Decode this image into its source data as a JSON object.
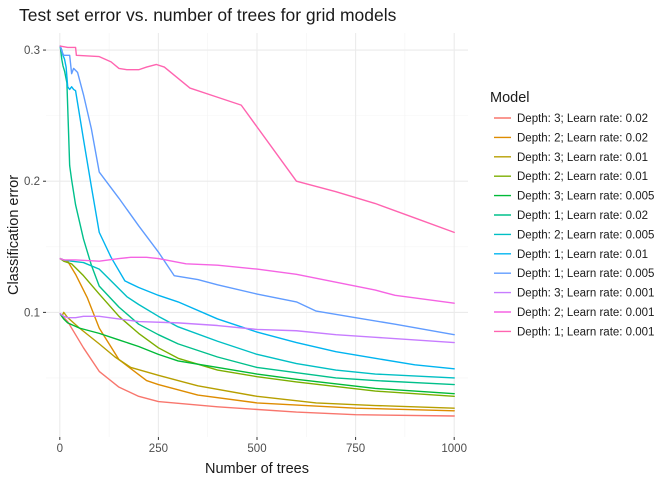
{
  "chart_data": {
    "type": "line",
    "title": "Test set error vs. number of trees for grid models",
    "xlabel": "Number of trees",
    "ylabel": "Classification error",
    "xlim": [
      -35,
      1035
    ],
    "ylim": [
      0.005,
      0.313
    ],
    "x_ticks": [
      0,
      250,
      500,
      750,
      1000
    ],
    "x_tick_labels": [
      "0",
      "250",
      "500",
      "750",
      "1000"
    ],
    "y_ticks": [
      0.1,
      0.2,
      0.3
    ],
    "y_tick_labels": [
      "0.1",
      "0.2",
      "0.3"
    ],
    "grid": true,
    "legend_title": "Model",
    "legend_position": "right",
    "series": [
      {
        "name": "Depth: 3; Learn rate: 0.02",
        "color": "#F8766D",
        "points": [
          [
            1,
            0.099
          ],
          [
            20,
            0.093
          ],
          [
            40,
            0.083
          ],
          [
            60,
            0.073
          ],
          [
            100,
            0.055
          ],
          [
            150,
            0.043
          ],
          [
            200,
            0.036
          ],
          [
            250,
            0.032
          ],
          [
            400,
            0.028
          ],
          [
            600,
            0.024
          ],
          [
            750,
            0.022
          ],
          [
            1000,
            0.021
          ]
        ]
      },
      {
        "name": "Depth: 2; Learn rate: 0.02",
        "color": "#DE8C00",
        "points": [
          [
            1,
            0.141
          ],
          [
            20,
            0.139
          ],
          [
            40,
            0.129
          ],
          [
            70,
            0.111
          ],
          [
            100,
            0.088
          ],
          [
            150,
            0.064
          ],
          [
            220,
            0.048
          ],
          [
            250,
            0.045
          ],
          [
            350,
            0.037
          ],
          [
            500,
            0.031
          ],
          [
            750,
            0.027
          ],
          [
            1000,
            0.025
          ]
        ]
      },
      {
        "name": "Depth: 3; Learn rate: 0.01",
        "color": "#B79F00",
        "points": [
          [
            1,
            0.099
          ],
          [
            5,
            0.097
          ],
          [
            10,
            0.1
          ],
          [
            20,
            0.096
          ],
          [
            50,
            0.088
          ],
          [
            100,
            0.076
          ],
          [
            140,
            0.066
          ],
          [
            180,
            0.058
          ],
          [
            250,
            0.052
          ],
          [
            350,
            0.044
          ],
          [
            500,
            0.036
          ],
          [
            650,
            0.031
          ],
          [
            800,
            0.029
          ],
          [
            1000,
            0.027
          ]
        ]
      },
      {
        "name": "Depth: 2; Learn rate: 0.01",
        "color": "#7CAE00",
        "points": [
          [
            1,
            0.141
          ],
          [
            10,
            0.139
          ],
          [
            30,
            0.137
          ],
          [
            60,
            0.128
          ],
          [
            100,
            0.114
          ],
          [
            150,
            0.097
          ],
          [
            200,
            0.084
          ],
          [
            250,
            0.073
          ],
          [
            300,
            0.065
          ],
          [
            400,
            0.056
          ],
          [
            500,
            0.051
          ],
          [
            600,
            0.047
          ],
          [
            800,
            0.04
          ],
          [
            1000,
            0.036
          ]
        ]
      },
      {
        "name": "Depth: 3; Learn rate: 0.005",
        "color": "#00BA38",
        "points": [
          [
            1,
            0.099
          ],
          [
            5,
            0.097
          ],
          [
            10,
            0.095
          ],
          [
            20,
            0.092
          ],
          [
            50,
            0.088
          ],
          [
            100,
            0.084
          ],
          [
            150,
            0.079
          ],
          [
            200,
            0.074
          ],
          [
            250,
            0.068
          ],
          [
            300,
            0.063
          ],
          [
            400,
            0.058
          ],
          [
            500,
            0.053
          ],
          [
            600,
            0.049
          ],
          [
            800,
            0.042
          ],
          [
            1000,
            0.038
          ]
        ]
      },
      {
        "name": "Depth: 1; Learn rate: 0.02",
        "color": "#00C08B",
        "points": [
          [
            1,
            0.303
          ],
          [
            3,
            0.298
          ],
          [
            5,
            0.293
          ],
          [
            8,
            0.288
          ],
          [
            12,
            0.284
          ],
          [
            18,
            0.275
          ],
          [
            25,
            0.212
          ],
          [
            30,
            0.201
          ],
          [
            40,
            0.182
          ],
          [
            60,
            0.156
          ],
          [
            80,
            0.136
          ],
          [
            100,
            0.12
          ],
          [
            150,
            0.104
          ],
          [
            200,
            0.091
          ],
          [
            250,
            0.083
          ],
          [
            300,
            0.076
          ],
          [
            400,
            0.066
          ],
          [
            500,
            0.058
          ],
          [
            600,
            0.054
          ],
          [
            700,
            0.05
          ],
          [
            800,
            0.048
          ],
          [
            1000,
            0.045
          ]
        ]
      },
      {
        "name": "Depth: 2; Learn rate: 0.005",
        "color": "#00BFC4",
        "points": [
          [
            1,
            0.141
          ],
          [
            10,
            0.14
          ],
          [
            30,
            0.139
          ],
          [
            60,
            0.138
          ],
          [
            100,
            0.133
          ],
          [
            130,
            0.124
          ],
          [
            170,
            0.112
          ],
          [
            200,
            0.106
          ],
          [
            250,
            0.097
          ],
          [
            300,
            0.089
          ],
          [
            400,
            0.078
          ],
          [
            500,
            0.068
          ],
          [
            600,
            0.061
          ],
          [
            700,
            0.056
          ],
          [
            800,
            0.053
          ],
          [
            1000,
            0.05
          ]
        ]
      },
      {
        "name": "Depth: 1; Learn rate: 0.01",
        "color": "#00B4F0",
        "points": [
          [
            1,
            0.303
          ],
          [
            5,
            0.3
          ],
          [
            8,
            0.296
          ],
          [
            12,
            0.293
          ],
          [
            16,
            0.287
          ],
          [
            20,
            0.272
          ],
          [
            25,
            0.27
          ],
          [
            30,
            0.272
          ],
          [
            35,
            0.27
          ],
          [
            40,
            0.269
          ],
          [
            60,
            0.232
          ],
          [
            80,
            0.196
          ],
          [
            100,
            0.161
          ],
          [
            130,
            0.142
          ],
          [
            165,
            0.124
          ],
          [
            200,
            0.119
          ],
          [
            250,
            0.113
          ],
          [
            300,
            0.108
          ],
          [
            400,
            0.095
          ],
          [
            500,
            0.085
          ],
          [
            600,
            0.077
          ],
          [
            700,
            0.07
          ],
          [
            800,
            0.065
          ],
          [
            900,
            0.06
          ],
          [
            1000,
            0.057
          ]
        ]
      },
      {
        "name": "Depth: 1; Learn rate: 0.005",
        "color": "#619CFF",
        "points": [
          [
            1,
            0.303
          ],
          [
            5,
            0.299
          ],
          [
            10,
            0.296
          ],
          [
            25,
            0.296
          ],
          [
            30,
            0.282
          ],
          [
            35,
            0.286
          ],
          [
            45,
            0.283
          ],
          [
            60,
            0.266
          ],
          [
            80,
            0.24
          ],
          [
            100,
            0.207
          ],
          [
            150,
            0.187
          ],
          [
            200,
            0.166
          ],
          [
            250,
            0.146
          ],
          [
            290,
            0.128
          ],
          [
            350,
            0.125
          ],
          [
            400,
            0.121
          ],
          [
            500,
            0.114
          ],
          [
            600,
            0.108
          ],
          [
            650,
            0.101
          ],
          [
            750,
            0.096
          ],
          [
            850,
            0.091
          ],
          [
            1000,
            0.083
          ]
        ]
      },
      {
        "name": "Depth: 3; Learn rate: 0.001",
        "color": "#C77CFF",
        "points": [
          [
            1,
            0.099
          ],
          [
            10,
            0.097
          ],
          [
            20,
            0.096
          ],
          [
            40,
            0.096
          ],
          [
            60,
            0.097
          ],
          [
            100,
            0.097
          ],
          [
            200,
            0.093
          ],
          [
            300,
            0.092
          ],
          [
            400,
            0.09
          ],
          [
            500,
            0.087
          ],
          [
            600,
            0.086
          ],
          [
            700,
            0.083
          ],
          [
            800,
            0.081
          ],
          [
            900,
            0.079
          ],
          [
            1000,
            0.077
          ]
        ]
      },
      {
        "name": "Depth: 2; Learn rate: 0.001",
        "color": "#F564E3",
        "points": [
          [
            1,
            0.141
          ],
          [
            10,
            0.14
          ],
          [
            40,
            0.14
          ],
          [
            100,
            0.139
          ],
          [
            150,
            0.141
          ],
          [
            180,
            0.142
          ],
          [
            220,
            0.142
          ],
          [
            250,
            0.141
          ],
          [
            320,
            0.137
          ],
          [
            400,
            0.136
          ],
          [
            500,
            0.133
          ],
          [
            600,
            0.129
          ],
          [
            700,
            0.123
          ],
          [
            800,
            0.117
          ],
          [
            850,
            0.113
          ],
          [
            1000,
            0.107
          ]
        ]
      },
      {
        "name": "Depth: 1; Learn rate: 0.001",
        "color": "#FF64B0",
        "points": [
          [
            1,
            0.303
          ],
          [
            20,
            0.302
          ],
          [
            40,
            0.302
          ],
          [
            42,
            0.296
          ],
          [
            100,
            0.295
          ],
          [
            130,
            0.291
          ],
          [
            150,
            0.286
          ],
          [
            170,
            0.285
          ],
          [
            200,
            0.285
          ],
          [
            220,
            0.287
          ],
          [
            245,
            0.289
          ],
          [
            265,
            0.287
          ],
          [
            330,
            0.271
          ],
          [
            400,
            0.264
          ],
          [
            460,
            0.258
          ],
          [
            600,
            0.2
          ],
          [
            700,
            0.192
          ],
          [
            800,
            0.183
          ],
          [
            900,
            0.172
          ],
          [
            1000,
            0.161
          ]
        ]
      }
    ]
  }
}
